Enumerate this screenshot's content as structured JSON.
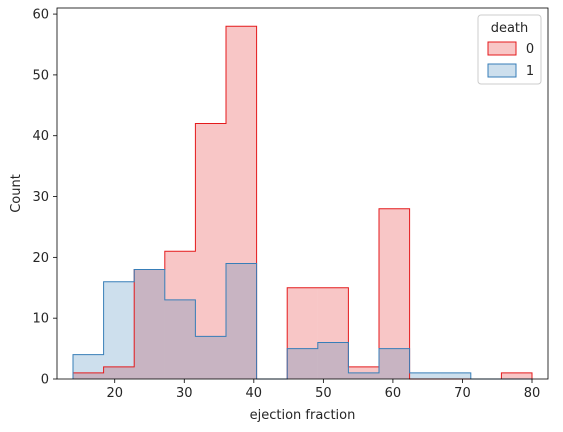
{
  "chart_data": {
    "type": "histogram",
    "xlabel": "ejection fraction",
    "ylabel": "Count",
    "xlim": [
      11.7,
      82.3
    ],
    "ylim": [
      0,
      61
    ],
    "xticks": [
      20,
      30,
      40,
      50,
      60,
      70,
      80
    ],
    "yticks": [
      0,
      10,
      20,
      30,
      40,
      50,
      60
    ],
    "bin_edges": [
      14.0,
      18.4,
      22.8,
      27.2,
      31.6,
      36.0,
      40.4,
      44.8,
      49.2,
      53.6,
      58.0,
      62.4,
      66.8,
      71.2,
      75.6,
      80.0
    ],
    "legend": {
      "title": "death",
      "placement": "upper right",
      "entries": [
        "0",
        "1"
      ]
    },
    "series": [
      {
        "name": "0",
        "values": [
          1,
          2,
          18,
          21,
          42,
          58,
          0,
          15,
          15,
          2,
          28,
          0,
          0,
          0,
          1
        ],
        "edge_color": "#e41a1c",
        "fill_color": "#e41a1c"
      },
      {
        "name": "1",
        "values": [
          4,
          16,
          18,
          13,
          7,
          19,
          0,
          5,
          6,
          1,
          5,
          1,
          1,
          0,
          0
        ],
        "edge_color": "#377eb8",
        "fill_color": "#377eb8"
      }
    ]
  }
}
